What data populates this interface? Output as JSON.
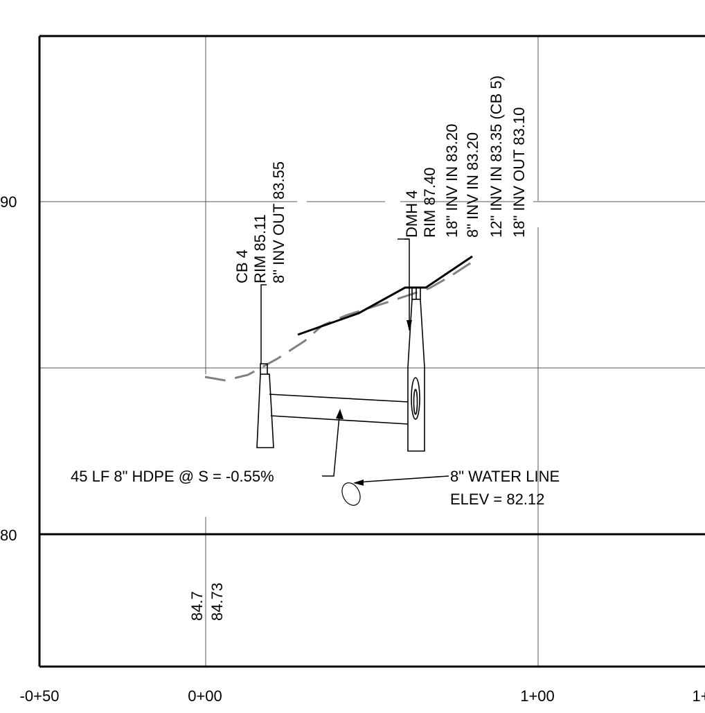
{
  "axis": {
    "y_labels": [
      "90",
      "80"
    ],
    "x_labels": [
      "-0+50",
      "0+00",
      "1+00",
      "1+"
    ]
  },
  "structures": {
    "cb4": {
      "name": "CB 4",
      "rim": "RIM 85.11",
      "inv_out": "8\" INV OUT 83.55"
    },
    "dmh4": {
      "name": "DMH 4",
      "rim": "RIM 87.40",
      "inv_in_1": "18\" INV IN 83.20",
      "inv_in_2": "8\" INV IN 83.20",
      "inv_in_3": "12\" INV IN 83.35 (CB 5)",
      "inv_out": "18\" INV OUT 83.10"
    }
  },
  "pipe": {
    "label": "45 LF 8\" HDPE @ S = -0.55%"
  },
  "water_line": {
    "label": "8\" WATER LINE",
    "elev": "ELEV = 82.12"
  },
  "bottom_band": {
    "existing": "84.7",
    "proposed": "84.73"
  }
}
